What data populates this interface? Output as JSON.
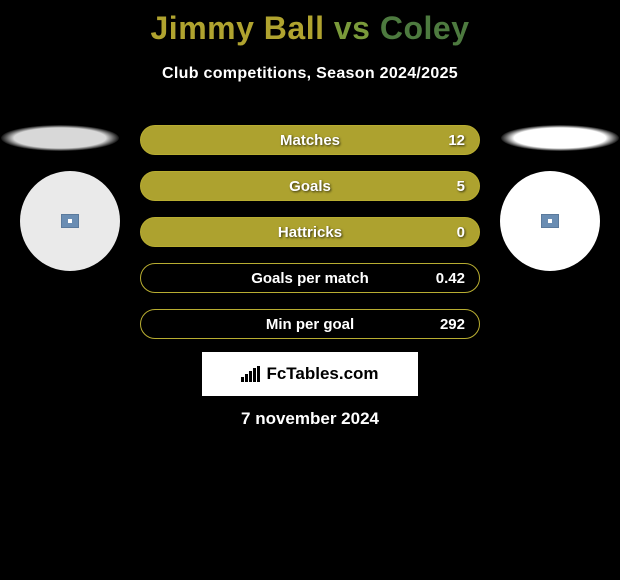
{
  "header": {
    "player1": "Jimmy Ball",
    "vs": "vs",
    "player2": "Coley",
    "subtitle": "Club competitions, Season 2024/2025",
    "colors": {
      "player1": "#b0a32f",
      "vs": "#7a9a3a",
      "player2": "#4d7a3f"
    }
  },
  "stats": [
    {
      "label": "Matches",
      "value": "12",
      "fill": "#ada22f",
      "border": "#b8ad31"
    },
    {
      "label": "Goals",
      "value": "5",
      "fill": "#ada22f",
      "border": "#b8ad31"
    },
    {
      "label": "Hattricks",
      "value": "0",
      "fill": "#ada22f",
      "border": "#b8ad31"
    },
    {
      "label": "Goals per match",
      "value": "0.42",
      "fill": "none",
      "border": "#b8ad31"
    },
    {
      "label": "Min per goal",
      "value": "292",
      "fill": "none",
      "border": "#b8ad31"
    }
  ],
  "footer": {
    "logo": "FcTables.com",
    "date": "7 november 2024"
  },
  "styling": {
    "background": "#000000",
    "pill_height": 30,
    "pill_gap": 16,
    "text_color": "#ffffff"
  }
}
